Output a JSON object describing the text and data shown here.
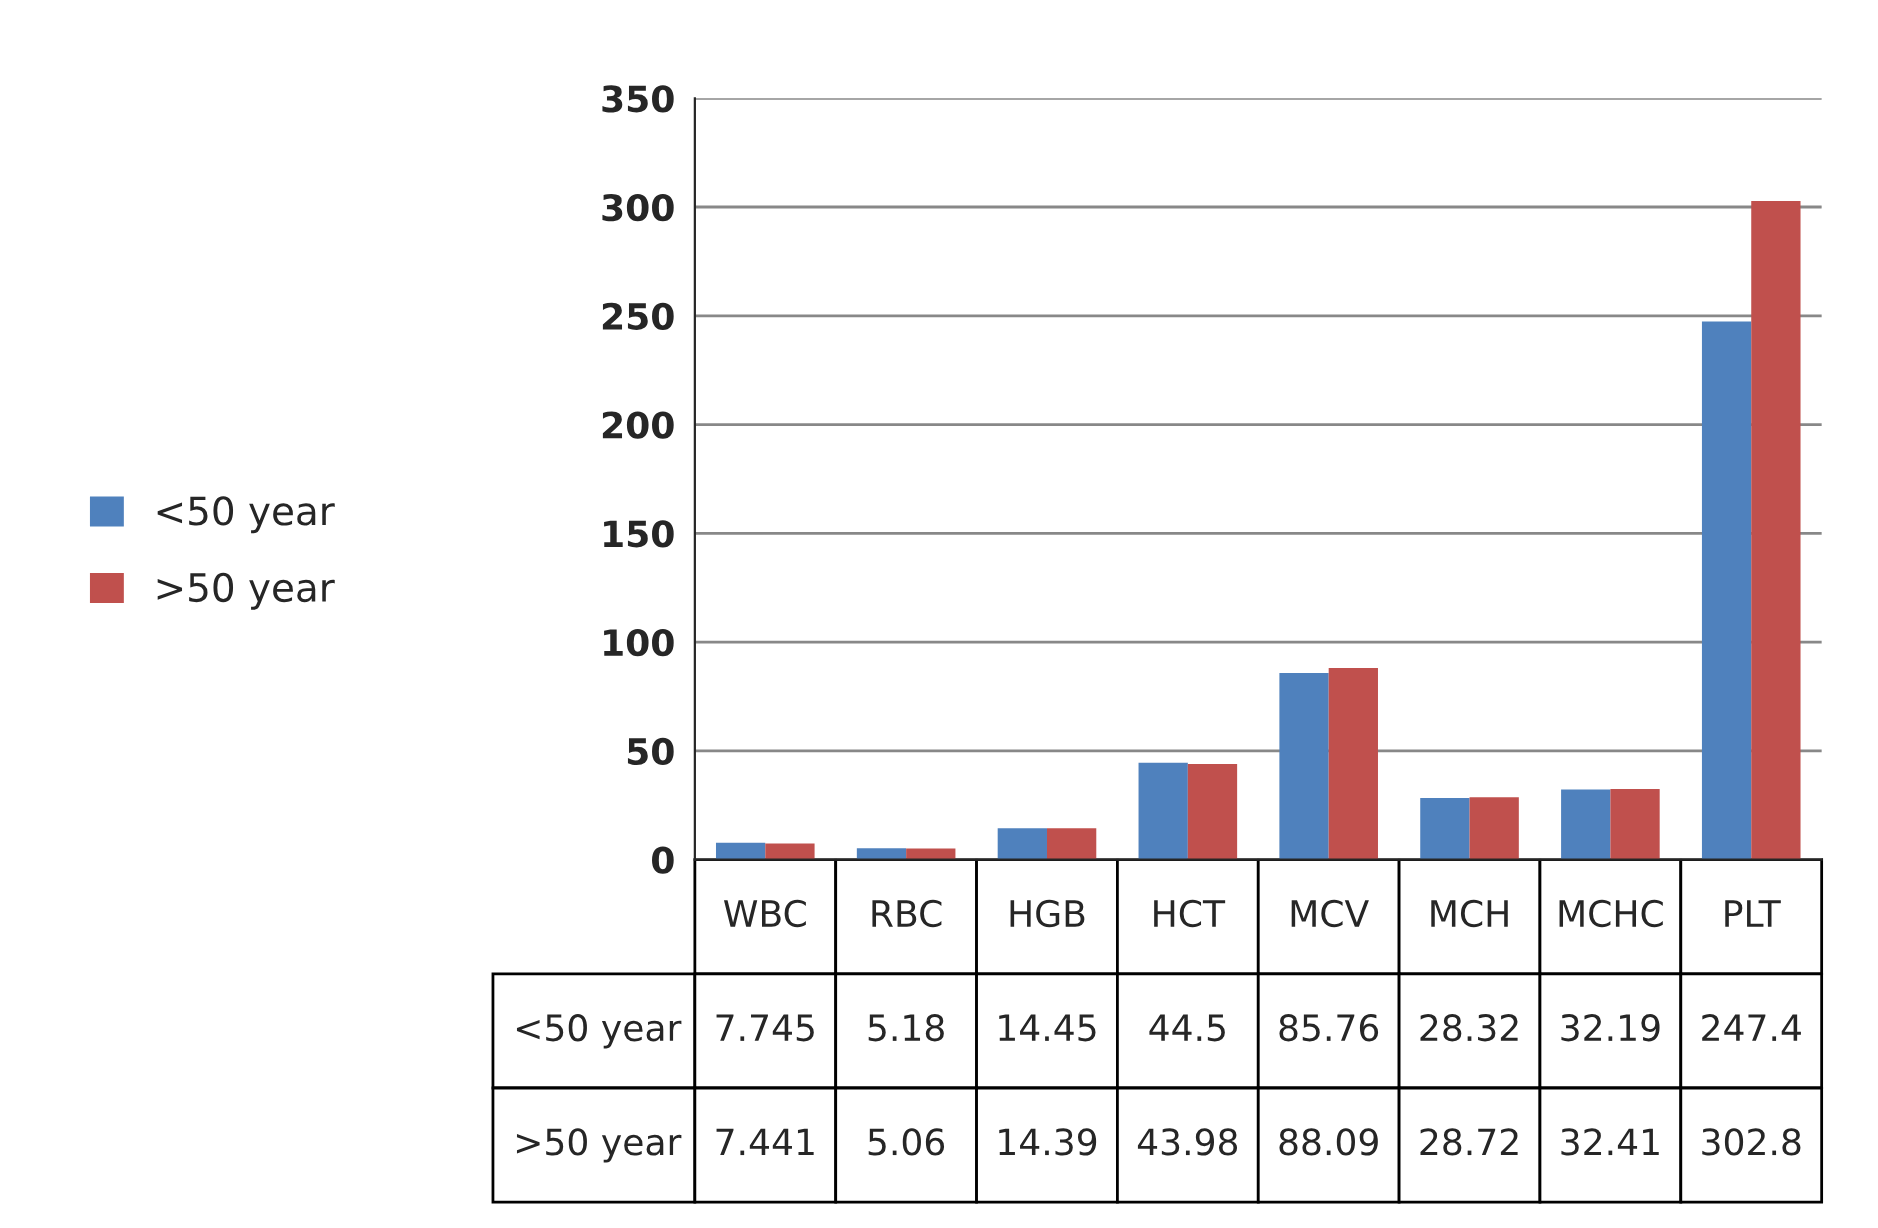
{
  "chart_data": {
    "type": "bar",
    "categories": [
      "WBC",
      "RBC",
      "HGB",
      "HCT",
      "MCV",
      "MCH",
      "MCHC",
      "PLT"
    ],
    "series": [
      {
        "name": "<50 year",
        "color": "#4f81bd",
        "values": [
          7.745,
          5.18,
          14.45,
          44.5,
          85.76,
          28.32,
          32.19,
          247.4
        ]
      },
      {
        "name": ">50 year",
        "color": "#c0504d",
        "values": [
          7.441,
          5.06,
          14.39,
          43.98,
          88.09,
          28.72,
          32.41,
          302.8
        ]
      }
    ],
    "ylim": [
      0,
      350
    ],
    "yticks": [
      0,
      50,
      100,
      150,
      200,
      250,
      300,
      350
    ],
    "grid": "y",
    "legend": "left",
    "data_labels": true,
    "tick_labels": "y"
  }
}
